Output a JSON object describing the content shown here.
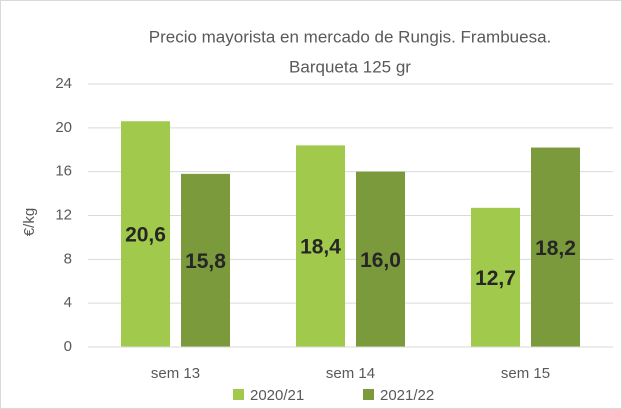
{
  "chart_data": {
    "type": "bar",
    "title": [
      "Precio mayorista en mercado de Rungis. Frambuesa.",
      "Barqueta 125 gr"
    ],
    "ylabel": "€/kg",
    "categories": [
      "sem 13",
      "sem 14",
      "sem 15"
    ],
    "series": [
      {
        "name": "2020/21",
        "color": "#a1c94b",
        "values": [
          20.6,
          18.4,
          12.7
        ],
        "value_labels": [
          "20,6",
          "18,4",
          "12,7"
        ]
      },
      {
        "name": "2021/22",
        "color": "#7b9a3c",
        "values": [
          15.8,
          16.0,
          18.2
        ],
        "value_labels": [
          "15,8",
          "16,0",
          "18,2"
        ]
      }
    ],
    "ylim": [
      0,
      24
    ],
    "yticks": [
      0,
      4,
      8,
      12,
      16,
      20,
      24
    ],
    "grid": true,
    "legend": "bottom"
  }
}
